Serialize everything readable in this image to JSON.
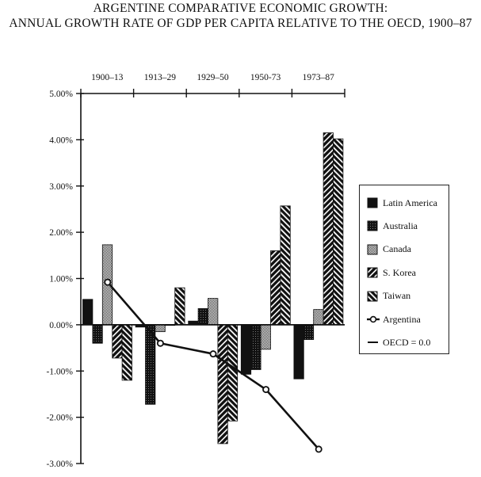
{
  "chart_data": {
    "type": "bar",
    "title": "ARGENTINE COMPARATIVE ECONOMIC GROWTH:",
    "subtitle": "ANNUAL GROWTH RATE OF GDP PER CAPITA RELATIVE TO THE OECD, 1900–87",
    "xlabel": "",
    "ylabel": "",
    "ylim": [
      -3,
      5
    ],
    "yticks": [
      5,
      4,
      3,
      2,
      1,
      0,
      -1,
      -2,
      -3
    ],
    "ytick_labels": [
      "5.00%",
      "4.00%",
      "3.00%",
      "2.00%",
      "1.00%",
      "0.00%",
      "-1.00%",
      "-2.00%",
      "-3.00%"
    ],
    "categories": [
      "1900–13",
      "1913–29",
      "1929–50",
      "1950-73",
      "1973–87"
    ],
    "x_axis_position": "top",
    "grid": false,
    "legend_position": "right",
    "series": [
      {
        "name": "Latin America",
        "kind": "bar",
        "pattern": "solid",
        "values": [
          0.55,
          -0.05,
          0.08,
          -1.07,
          -1.17
        ]
      },
      {
        "name": "Australia",
        "kind": "bar",
        "pattern": "dark-dots",
        "values": [
          -0.4,
          -1.72,
          0.35,
          -0.97,
          -0.32
        ]
      },
      {
        "name": "Canada",
        "kind": "bar",
        "pattern": "checker",
        "values": [
          1.73,
          -0.15,
          0.57,
          -0.53,
          0.33
        ]
      },
      {
        "name": "S. Korea",
        "kind": "bar",
        "pattern": "diag-back",
        "values": [
          -0.72,
          0.0,
          -2.57,
          1.6,
          4.15
        ]
      },
      {
        "name": "Taiwan",
        "kind": "bar",
        "pattern": "diag-fwd",
        "values": [
          -1.2,
          0.8,
          -2.08,
          2.57,
          4.02
        ]
      },
      {
        "name": "Argentina",
        "kind": "line",
        "marker": "diamond-open",
        "values": [
          0.92,
          -0.4,
          -0.63,
          -1.4,
          -2.69
        ]
      }
    ],
    "legend_entries": [
      "Latin America",
      "Australia",
      "Canada",
      "S. Korea",
      "Taiwan",
      "Argentina",
      "OECD = 0.0"
    ]
  }
}
